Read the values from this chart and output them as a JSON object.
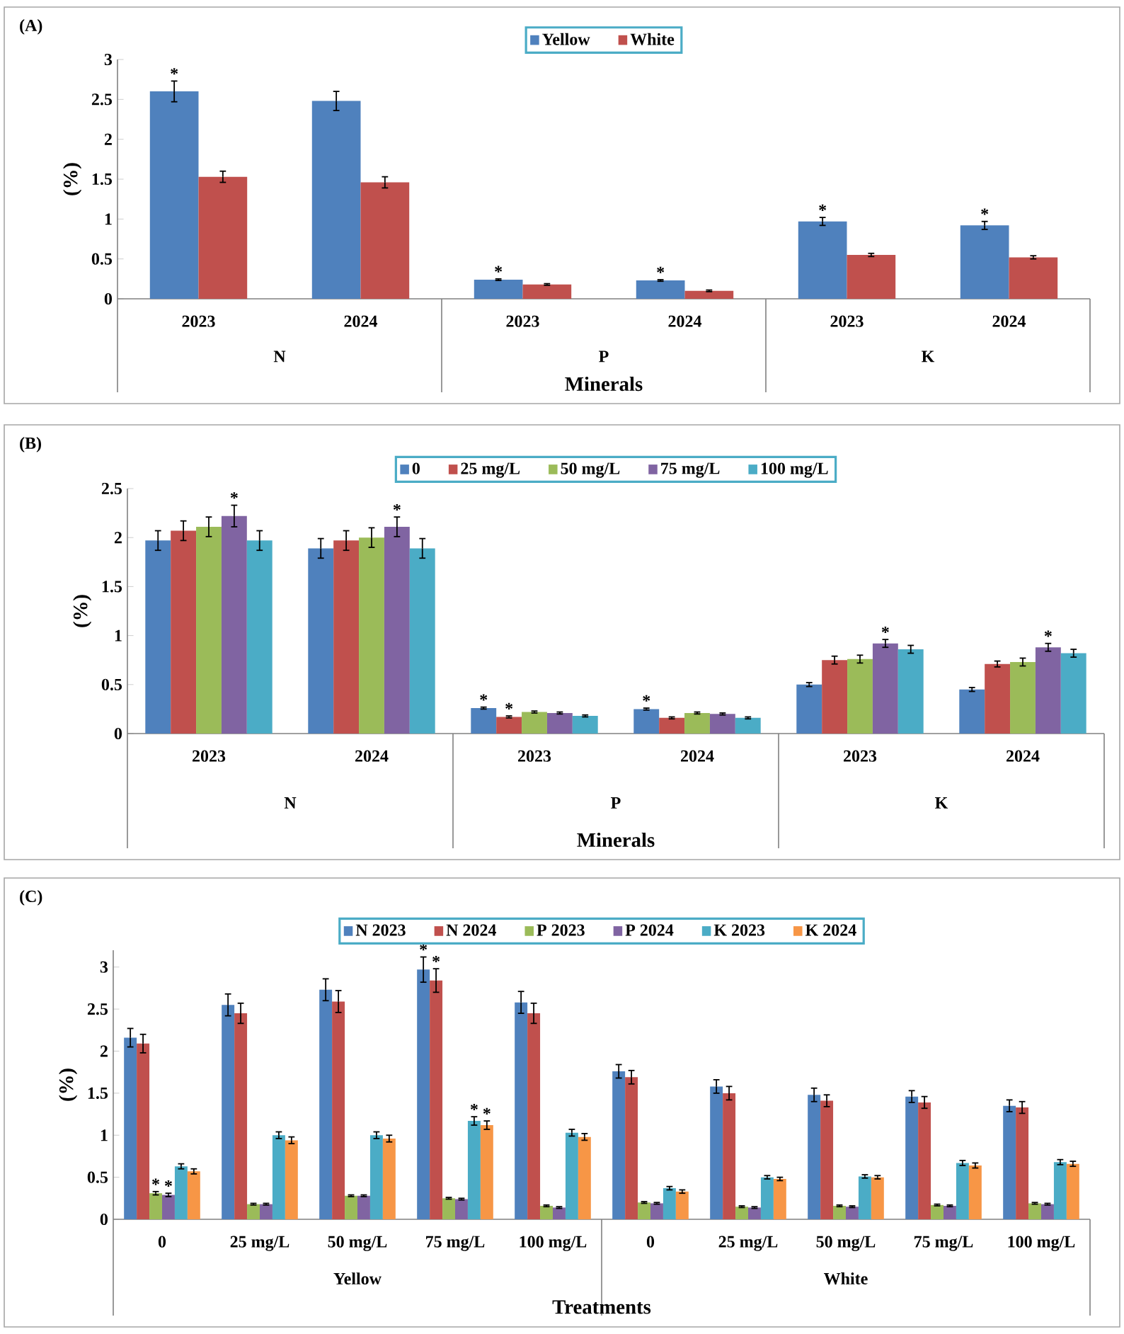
{
  "chart_data": [
    {
      "type": "bar",
      "title": "(A)",
      "xlabel": "Minerals",
      "ylabel": "(%)",
      "legend": "top",
      "categories": [
        "2023",
        "2024",
        "2023",
        "2024",
        "2023",
        "2024"
      ],
      "annotations": [
        "N",
        "P",
        "K"
      ],
      "ylim": [
        0,
        3
      ],
      "yticks": [
        0,
        0.5,
        1,
        1.5,
        2,
        2.5,
        3
      ],
      "series": [
        {
          "name": "Yellow",
          "color": "#4f81bd",
          "values": [
            2.6,
            2.48,
            0.24,
            0.23,
            0.97,
            0.92
          ],
          "errors": [
            0.13,
            0.12,
            0.01,
            0.01,
            0.05,
            0.05
          ],
          "value_labels": [
            "*",
            null,
            "*",
            "*",
            "*",
            "*"
          ]
        },
        {
          "name": "White",
          "color": "#c0504d",
          "values": [
            1.53,
            1.46,
            0.18,
            0.1,
            0.55,
            0.52
          ],
          "errors": [
            0.07,
            0.07,
            0.01,
            0.01,
            0.02,
            0.02
          ]
        }
      ]
    },
    {
      "type": "bar",
      "title": "(B)",
      "xlabel": "Minerals",
      "ylabel": "(%)",
      "legend": "top",
      "categories": [
        "2023",
        "2024",
        "2023",
        "2024",
        "2023",
        "2024"
      ],
      "annotations": [
        "N",
        "P",
        "K"
      ],
      "ylim": [
        0,
        2.5
      ],
      "yticks": [
        0,
        0.5,
        1,
        1.5,
        2,
        2.5
      ],
      "series": [
        {
          "name": "0",
          "color": "#4f81bd",
          "values": [
            1.97,
            1.89,
            0.26,
            0.25,
            0.5,
            0.45
          ],
          "errors": [
            0.1,
            0.1,
            0.01,
            0.01,
            0.02,
            0.02
          ],
          "value_labels": [
            null,
            null,
            "*",
            "*",
            null,
            null
          ]
        },
        {
          "name": "25 mg/L",
          "color": "#c0504d",
          "values": [
            2.07,
            1.97,
            0.17,
            0.16,
            0.75,
            0.71
          ],
          "errors": [
            0.1,
            0.1,
            0.01,
            0.01,
            0.04,
            0.03
          ],
          "value_labels": [
            null,
            null,
            "*",
            null,
            null,
            null
          ]
        },
        {
          "name": "50 mg/L",
          "color": "#9bbb59",
          "values": [
            2.11,
            2.0,
            0.22,
            0.21,
            0.76,
            0.73
          ],
          "errors": [
            0.1,
            0.1,
            0.01,
            0.01,
            0.04,
            0.04
          ]
        },
        {
          "name": "75 mg/L",
          "color": "#8064a2",
          "values": [
            2.22,
            2.11,
            0.21,
            0.2,
            0.92,
            0.88
          ],
          "errors": [
            0.11,
            0.1,
            0.01,
            0.01,
            0.04,
            0.04
          ],
          "value_labels": [
            "*",
            "*",
            null,
            null,
            "*",
            "*"
          ]
        },
        {
          "name": "100 mg/L",
          "color": "#4bacc6",
          "values": [
            1.97,
            1.89,
            0.18,
            0.16,
            0.86,
            0.82
          ],
          "errors": [
            0.1,
            0.1,
            0.01,
            0.01,
            0.04,
            0.04
          ]
        }
      ]
    },
    {
      "type": "bar",
      "title": "(C)",
      "xlabel": "Treatments",
      "ylabel": "(%)",
      "legend": "top",
      "categories": [
        "0",
        "25 mg/L",
        "50 mg/L",
        "75 mg/L",
        "100 mg/L",
        "0",
        "25 mg/L",
        "50 mg/L",
        "75 mg/L",
        "100 mg/L"
      ],
      "annotations": [
        "Yellow",
        "White"
      ],
      "ylim": [
        0,
        3.2
      ],
      "yticks": [
        0,
        0.5,
        1,
        1.5,
        2,
        2.5,
        3
      ],
      "series": [
        {
          "name": "N  2023",
          "color": "#4f81bd",
          "values": [
            2.16,
            2.55,
            2.73,
            2.97,
            2.58,
            1.76,
            1.58,
            1.48,
            1.46,
            1.35
          ],
          "errors": [
            0.11,
            0.13,
            0.13,
            0.15,
            0.13,
            0.08,
            0.08,
            0.08,
            0.07,
            0.07
          ],
          "value_labels": [
            null,
            null,
            null,
            "*",
            null,
            null,
            null,
            null,
            null,
            null
          ]
        },
        {
          "name": "N  2024",
          "color": "#c0504d",
          "values": [
            2.09,
            2.45,
            2.59,
            2.84,
            2.45,
            1.69,
            1.5,
            1.41,
            1.39,
            1.33
          ],
          "errors": [
            0.11,
            0.12,
            0.13,
            0.14,
            0.12,
            0.08,
            0.08,
            0.07,
            0.07,
            0.07
          ],
          "value_labels": [
            null,
            null,
            null,
            "*",
            null,
            null,
            null,
            null,
            null,
            null
          ]
        },
        {
          "name": "P 2023",
          "color": "#9bbb59",
          "values": [
            0.31,
            0.18,
            0.28,
            0.25,
            0.16,
            0.2,
            0.15,
            0.16,
            0.17,
            0.19
          ],
          "errors": [
            0.02,
            0.01,
            0.01,
            0.01,
            0.01,
            0.01,
            0.01,
            0.01,
            0.01,
            0.01
          ],
          "value_labels": [
            "*",
            null,
            null,
            null,
            null,
            null,
            null,
            null,
            null,
            null
          ]
        },
        {
          "name": "P 2024",
          "color": "#8064a2",
          "values": [
            0.29,
            0.18,
            0.28,
            0.24,
            0.14,
            0.19,
            0.14,
            0.15,
            0.16,
            0.18
          ],
          "errors": [
            0.02,
            0.01,
            0.01,
            0.01,
            0.01,
            0.01,
            0.01,
            0.01,
            0.01,
            0.01
          ],
          "value_labels": [
            "*",
            null,
            null,
            null,
            null,
            null,
            null,
            null,
            null,
            null
          ]
        },
        {
          "name": "K 2023",
          "color": "#4bacc6",
          "values": [
            0.63,
            1.0,
            1.0,
            1.17,
            1.03,
            0.37,
            0.5,
            0.51,
            0.67,
            0.68
          ],
          "errors": [
            0.03,
            0.04,
            0.04,
            0.05,
            0.04,
            0.02,
            0.02,
            0.02,
            0.03,
            0.03
          ],
          "value_labels": [
            null,
            null,
            null,
            "*",
            null,
            null,
            null,
            null,
            null,
            null
          ]
        },
        {
          "name": "K 2024",
          "color": "#f79646",
          "values": [
            0.57,
            0.94,
            0.96,
            1.12,
            0.98,
            0.33,
            0.48,
            0.5,
            0.64,
            0.66
          ],
          "errors": [
            0.03,
            0.04,
            0.04,
            0.05,
            0.04,
            0.02,
            0.02,
            0.02,
            0.03,
            0.03
          ],
          "value_labels": [
            null,
            null,
            null,
            "*",
            null,
            null,
            null,
            null,
            null,
            null
          ]
        }
      ]
    }
  ]
}
